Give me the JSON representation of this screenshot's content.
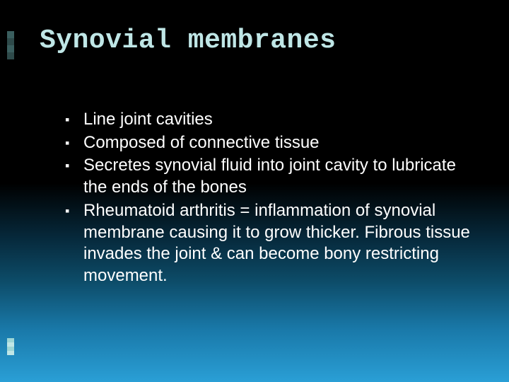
{
  "background": {
    "gradient_stops": [
      "#000000",
      "#000000",
      "#06283a",
      "#0d4d6a",
      "#1978a8",
      "#2a9fd6"
    ]
  },
  "title": {
    "text": "Synovial membranes",
    "color": "#bfe6e6",
    "font_family": "Consolas, Courier New, monospace",
    "font_size": 38
  },
  "bullets": {
    "marker": "▪",
    "marker_color": "#ffffff",
    "text_color": "#ffffff",
    "font_size": 24,
    "font_family": "Segoe UI, Helvetica Neue, Arial, sans-serif",
    "items": [
      "Line joint cavities",
      "Composed of connective tissue",
      "Secretes synovial fluid into joint cavity to lubricate the ends of the bones",
      "Rheumatoid arthritis = inflammation of synovial membrane causing it to grow thicker. Fibrous tissue invades the joint & can become bony restricting movement."
    ]
  },
  "decor": {
    "top_bars_colors": [
      "#3a5e5e",
      "#3a5e5e",
      "#3a5e5e",
      "#3a5e5e"
    ],
    "bottom_bars_colors": [
      "#bfe6e6",
      "#bfe6e6",
      "#bfe6e6",
      "#bfe6e6"
    ]
  }
}
